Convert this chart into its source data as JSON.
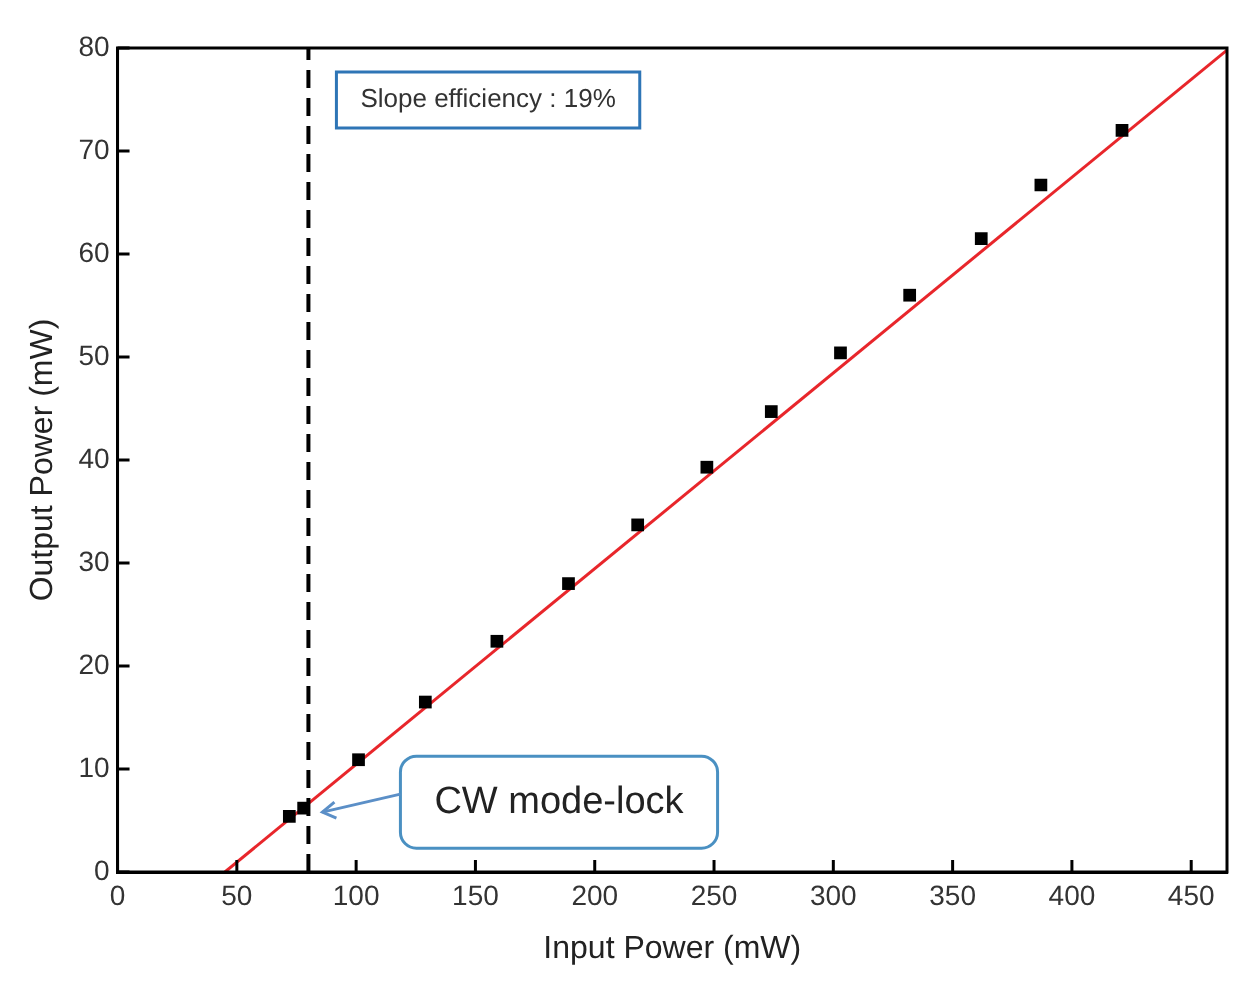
{
  "chart_data": {
    "type": "scatter",
    "xlabel": "Input Power (mW)",
    "ylabel": "Output Power (mW)",
    "xlim": [
      0,
      465
    ],
    "xticks": [
      0,
      50,
      100,
      150,
      200,
      250,
      300,
      350,
      400,
      450
    ],
    "ylim": [
      0,
      80
    ],
    "yticks": [
      0,
      10,
      20,
      30,
      40,
      50,
      60,
      70,
      80
    ],
    "grid": false,
    "marker": "square",
    "series": [
      {
        "color": "#000000",
        "x": [
          72,
          78,
          101,
          129,
          159,
          189,
          218,
          247,
          274,
          303,
          332,
          362,
          387,
          421
        ],
        "values": [
          5.4,
          6.2,
          10.9,
          16.5,
          22.4,
          28,
          33.7,
          39.3,
          44.7,
          50.4,
          56,
          61.5,
          66.7,
          72
        ]
      },
      {
        "type": "line",
        "color": "#e8262b",
        "marker": "none",
        "line_style": "solid",
        "x": [
          45,
          465
        ],
        "values": [
          0,
          79.8
        ]
      }
    ],
    "ref_lines": [
      {
        "axis": "x",
        "value": 80,
        "color": "#000000",
        "line_style": "dashed"
      }
    ],
    "annotations": [
      "Slope efficiency : 19%",
      {
        "text": "CW mode-lock",
        "x": 80,
        "y": 6.2
      }
    ]
  }
}
